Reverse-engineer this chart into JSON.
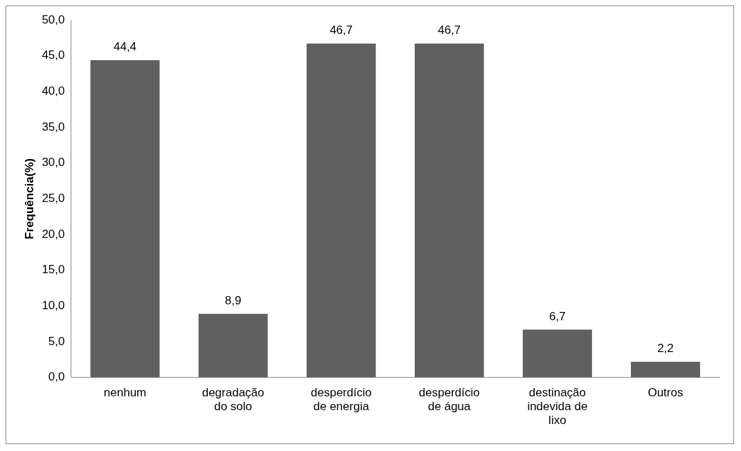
{
  "chart_data": {
    "type": "bar",
    "ylabel": "Frequência(%)",
    "categories": [
      "nenhum",
      "degradação do solo",
      "desperdício de energia",
      "desperdício de água",
      "destinação indevida de lixo",
      "Outros"
    ],
    "values": [
      44.4,
      8.9,
      46.7,
      46.7,
      6.7,
      2.2
    ],
    "value_labels": [
      "44,4",
      "8,9",
      "46,7",
      "46,7",
      "6,7",
      "2,2"
    ],
    "color": "#606060",
    "ylim": [
      0,
      50
    ],
    "yticks": [
      {
        "value": 0,
        "label": "0,0"
      },
      {
        "value": 5,
        "label": "5,0"
      },
      {
        "value": 10,
        "label": "10,0"
      },
      {
        "value": 15,
        "label": "15,0"
      },
      {
        "value": 20,
        "label": "20,0"
      },
      {
        "value": 25,
        "label": "25,0"
      },
      {
        "value": 30,
        "label": "30,0"
      },
      {
        "value": 35,
        "label": "35,0"
      },
      {
        "value": 40,
        "label": "40,0"
      },
      {
        "value": 45,
        "label": "45,0"
      },
      {
        "value": 50,
        "label": "50,0"
      }
    ],
    "grid": false,
    "legend": false
  }
}
